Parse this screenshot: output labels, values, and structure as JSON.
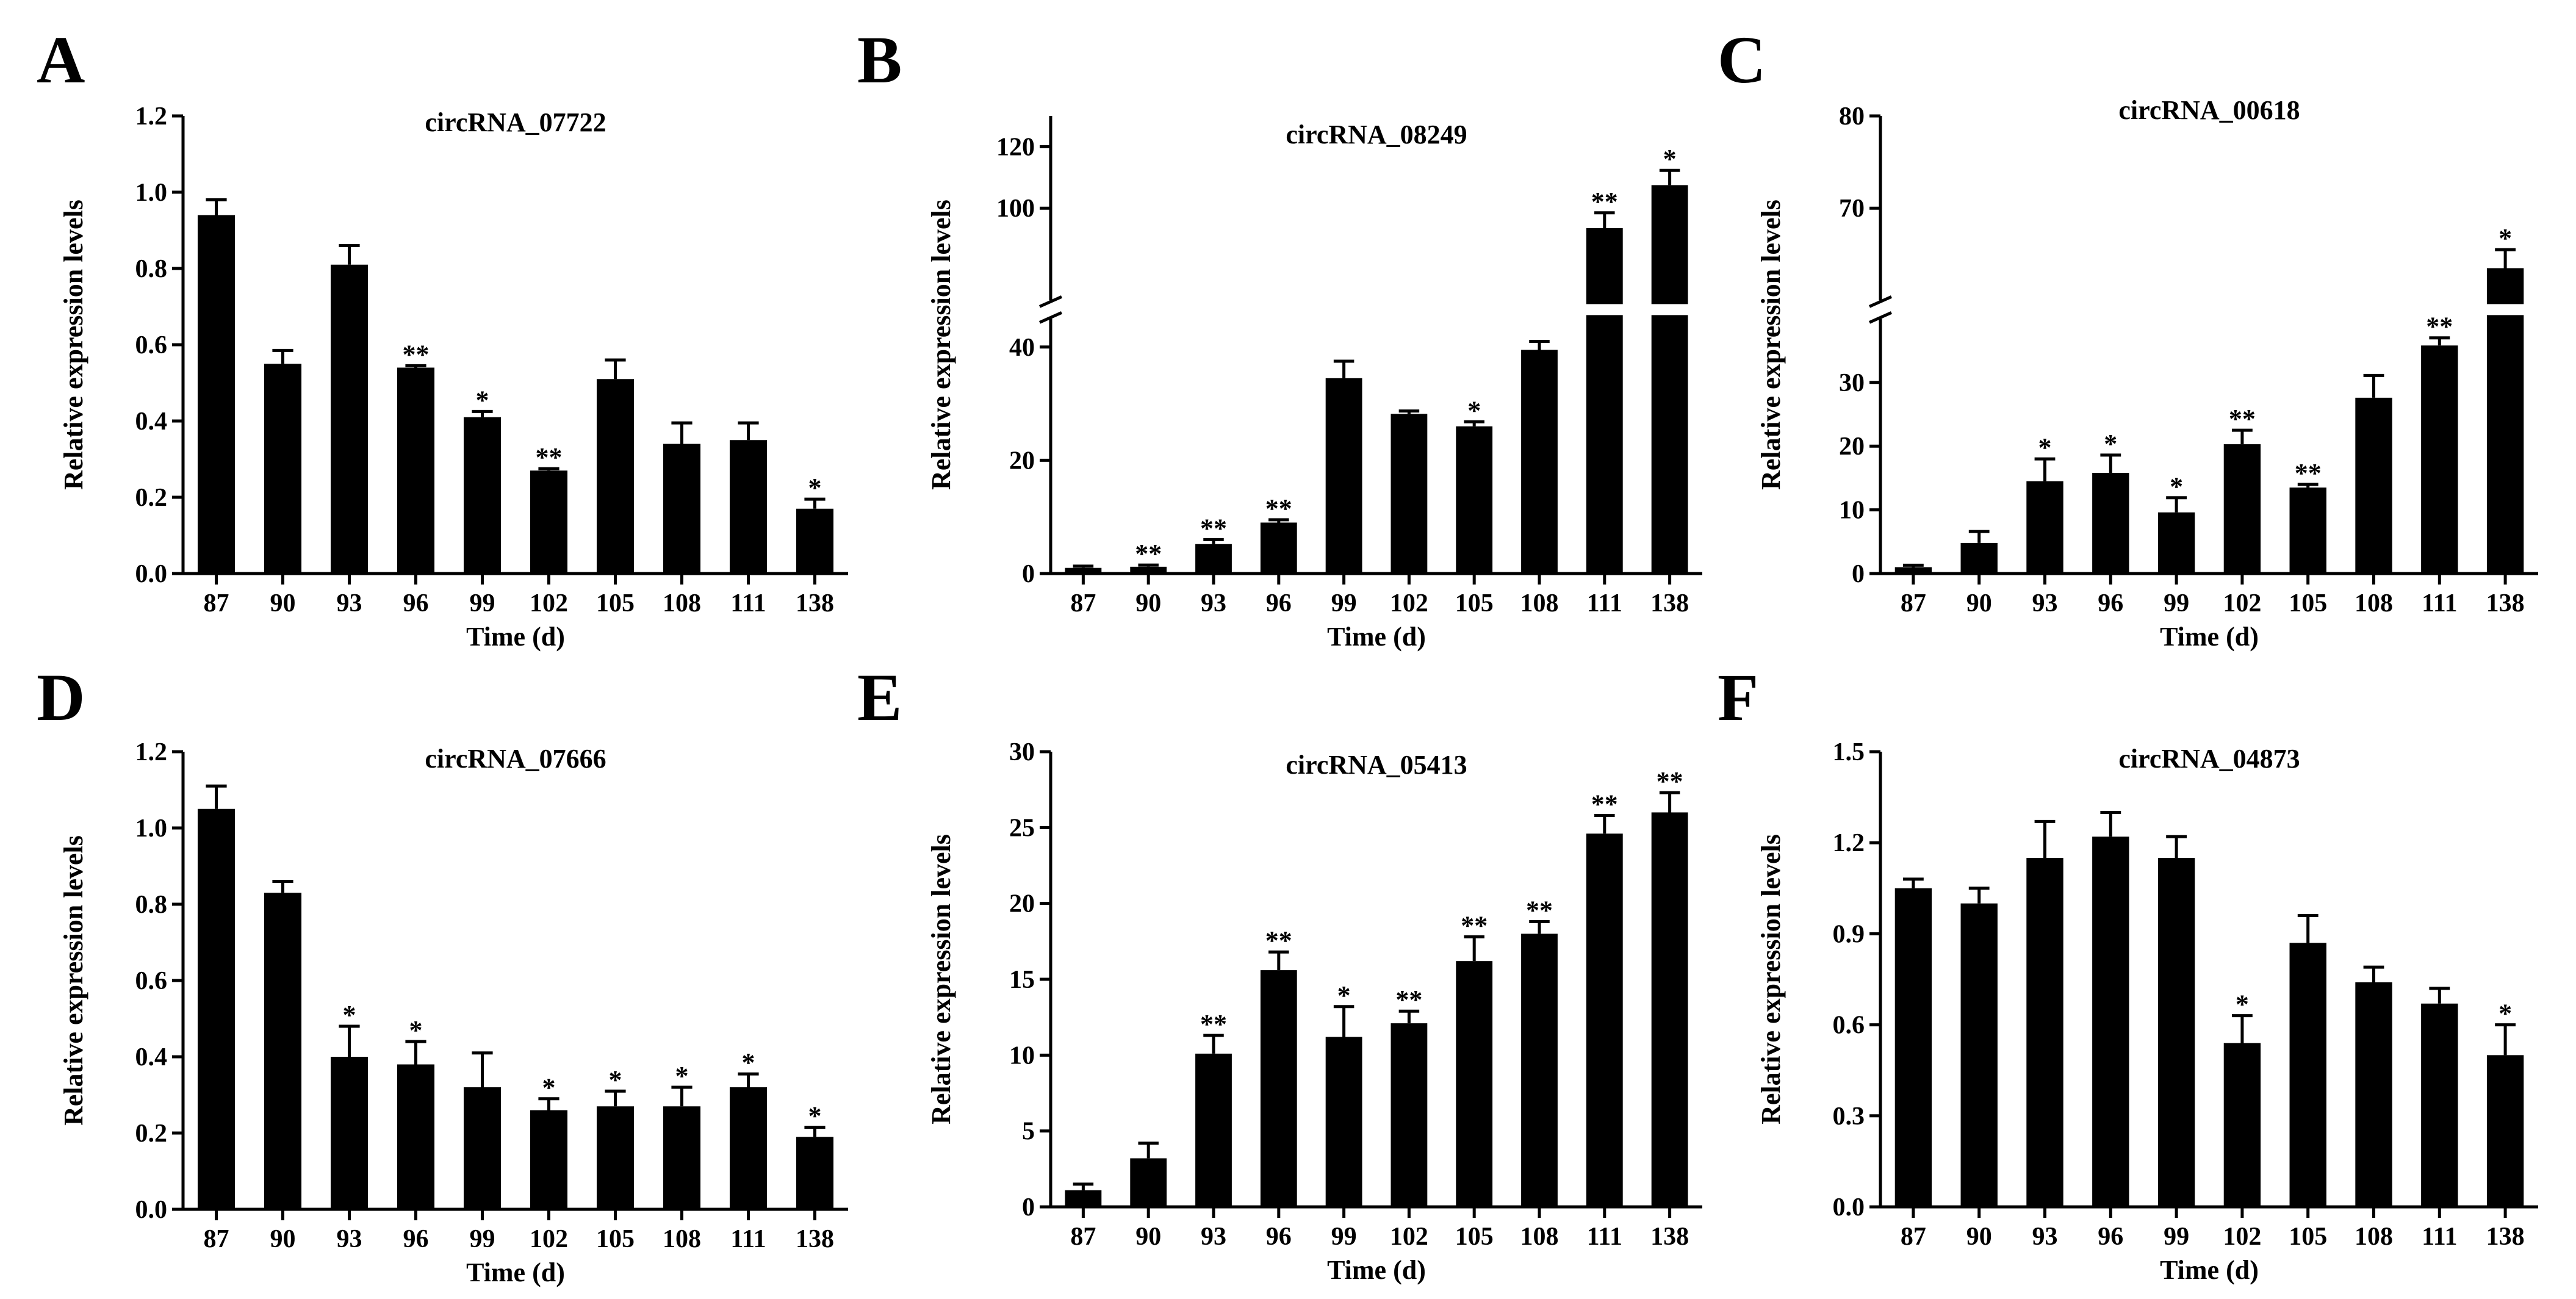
{
  "figure": {
    "panels": [
      {
        "letter": "A"
      },
      {
        "letter": "B"
      },
      {
        "letter": "C"
      },
      {
        "letter": "D"
      },
      {
        "letter": "E"
      },
      {
        "letter": "F"
      }
    ]
  },
  "chart_data": [
    {
      "type": "bar",
      "panel": "A",
      "title": "circRNA_07722",
      "xlabel": "Time (d)",
      "ylabel": "Relative expression levels",
      "categories": [
        "87",
        "90",
        "93",
        "96",
        "99",
        "102",
        "105",
        "108",
        "111",
        "138"
      ],
      "values": [
        0.94,
        0.55,
        0.81,
        0.54,
        0.41,
        0.27,
        0.51,
        0.34,
        0.35,
        0.17
      ],
      "errors": [
        0.04,
        0.035,
        0.05,
        0.005,
        0.015,
        0.005,
        0.05,
        0.055,
        0.045,
        0.025
      ],
      "significance": [
        "",
        "",
        "",
        "**",
        "*",
        "**",
        "",
        "",
        "",
        "*"
      ],
      "ylim": [
        0,
        1.2
      ],
      "yticks": [
        0.0,
        0.2,
        0.4,
        0.6,
        0.8,
        1.0,
        1.2
      ],
      "ytick_labels": [
        "0.0",
        "0.2",
        "0.4",
        "0.6",
        "0.8",
        "1.0",
        "1.2"
      ]
    },
    {
      "type": "bar",
      "panel": "B",
      "title": "circRNA_08249",
      "xlabel": "Time (d)",
      "ylabel": "Relative expression levels",
      "categories": [
        "87",
        "90",
        "93",
        "96",
        "99",
        "102",
        "105",
        "108",
        "111",
        "138"
      ],
      "values": [
        1.0,
        1.2,
        5.2,
        9.0,
        34.5,
        28.2,
        26.0,
        39.5,
        93.5,
        107.5
      ],
      "errors": [
        0.3,
        0.3,
        0.8,
        0.5,
        3.0,
        0.5,
        0.8,
        1.5,
        5.0,
        4.8
      ],
      "significance": [
        "",
        "**",
        "**",
        "**",
        "",
        "",
        "*",
        "",
        "**",
        "*"
      ],
      "axis_break": [
        45,
        70
      ],
      "ylim": [
        0,
        130
      ],
      "yticks": [
        0,
        20,
        40,
        100,
        120
      ],
      "ytick_labels": [
        "0",
        "20",
        "40",
        "100",
        "120"
      ]
    },
    {
      "type": "bar",
      "panel": "C",
      "title": "circRNA_00618",
      "xlabel": "Time (d)",
      "ylabel": "Relative expression levels",
      "categories": [
        "87",
        "90",
        "93",
        "96",
        "99",
        "102",
        "105",
        "108",
        "111",
        "138"
      ],
      "values": [
        1.0,
        4.8,
        14.5,
        15.8,
        9.6,
        20.3,
        13.5,
        27.6,
        35.8,
        63.5
      ],
      "errors": [
        0.3,
        1.8,
        3.5,
        2.8,
        2.3,
        2.2,
        0.5,
        3.5,
        1.2,
        2.0
      ],
      "significance": [
        "",
        "",
        "*",
        "*",
        "*",
        "**",
        "**",
        "",
        "**",
        "*"
      ],
      "axis_break": [
        40,
        60
      ],
      "ylim": [
        0,
        80
      ],
      "yticks": [
        0,
        10,
        20,
        30,
        70,
        80
      ],
      "ytick_labels": [
        "0",
        "10",
        "20",
        "30",
        "70",
        "80"
      ]
    },
    {
      "type": "bar",
      "panel": "D",
      "title": "circRNA_07666",
      "xlabel": "Time (d)",
      "ylabel": "Relative expression levels",
      "categories": [
        "87",
        "90",
        "93",
        "96",
        "99",
        "102",
        "105",
        "108",
        "111",
        "138"
      ],
      "values": [
        1.05,
        0.83,
        0.4,
        0.38,
        0.32,
        0.26,
        0.27,
        0.27,
        0.32,
        0.19
      ],
      "errors": [
        0.06,
        0.03,
        0.08,
        0.06,
        0.09,
        0.03,
        0.04,
        0.05,
        0.035,
        0.025
      ],
      "significance": [
        "",
        "",
        "*",
        "*",
        "",
        "*",
        "*",
        "*",
        "*",
        "*"
      ],
      "ylim": [
        0,
        1.2
      ],
      "yticks": [
        0.0,
        0.2,
        0.4,
        0.6,
        0.8,
        1.0,
        1.2
      ],
      "ytick_labels": [
        "0.0",
        "0.2",
        "0.4",
        "0.6",
        "0.8",
        "1.0",
        "1.2"
      ]
    },
    {
      "type": "bar",
      "panel": "E",
      "title": "circRNA_05413",
      "xlabel": "Time (d)",
      "ylabel": "Relative expression levels",
      "categories": [
        "87",
        "90",
        "93",
        "96",
        "99",
        "102",
        "105",
        "108",
        "111",
        "138"
      ],
      "values": [
        1.1,
        3.2,
        10.1,
        15.6,
        11.2,
        12.1,
        16.2,
        18.0,
        24.6,
        26.0
      ],
      "errors": [
        0.4,
        1.0,
        1.2,
        1.2,
        2.0,
        0.8,
        1.6,
        0.8,
        1.2,
        1.3
      ],
      "significance": [
        "",
        "",
        "**",
        "**",
        "*",
        "**",
        "**",
        "**",
        "**",
        "**"
      ],
      "ylim": [
        0,
        30
      ],
      "yticks": [
        0,
        5,
        10,
        15,
        20,
        25,
        30
      ],
      "ytick_labels": [
        "0",
        "5",
        "10",
        "15",
        "20",
        "25",
        "30"
      ]
    },
    {
      "type": "bar",
      "panel": "F",
      "title": "circRNA_04873",
      "xlabel": "Time (d)",
      "ylabel": "Relative expression levels",
      "categories": [
        "87",
        "90",
        "93",
        "96",
        "99",
        "102",
        "105",
        "108",
        "111",
        "138"
      ],
      "values": [
        1.05,
        1.0,
        1.15,
        1.22,
        1.15,
        0.54,
        0.87,
        0.74,
        0.67,
        0.5
      ],
      "errors": [
        0.03,
        0.05,
        0.12,
        0.08,
        0.07,
        0.09,
        0.09,
        0.05,
        0.05,
        0.1
      ],
      "significance": [
        "",
        "",
        "",
        "",
        "",
        "*",
        "",
        "",
        "",
        "*"
      ],
      "ylim": [
        0,
        1.5
      ],
      "yticks": [
        0.0,
        0.3,
        0.6,
        0.9,
        1.2,
        1.5
      ],
      "ytick_labels": [
        "0.0",
        "0.3",
        "0.6",
        "0.9",
        "1.2",
        "1.5"
      ]
    }
  ]
}
